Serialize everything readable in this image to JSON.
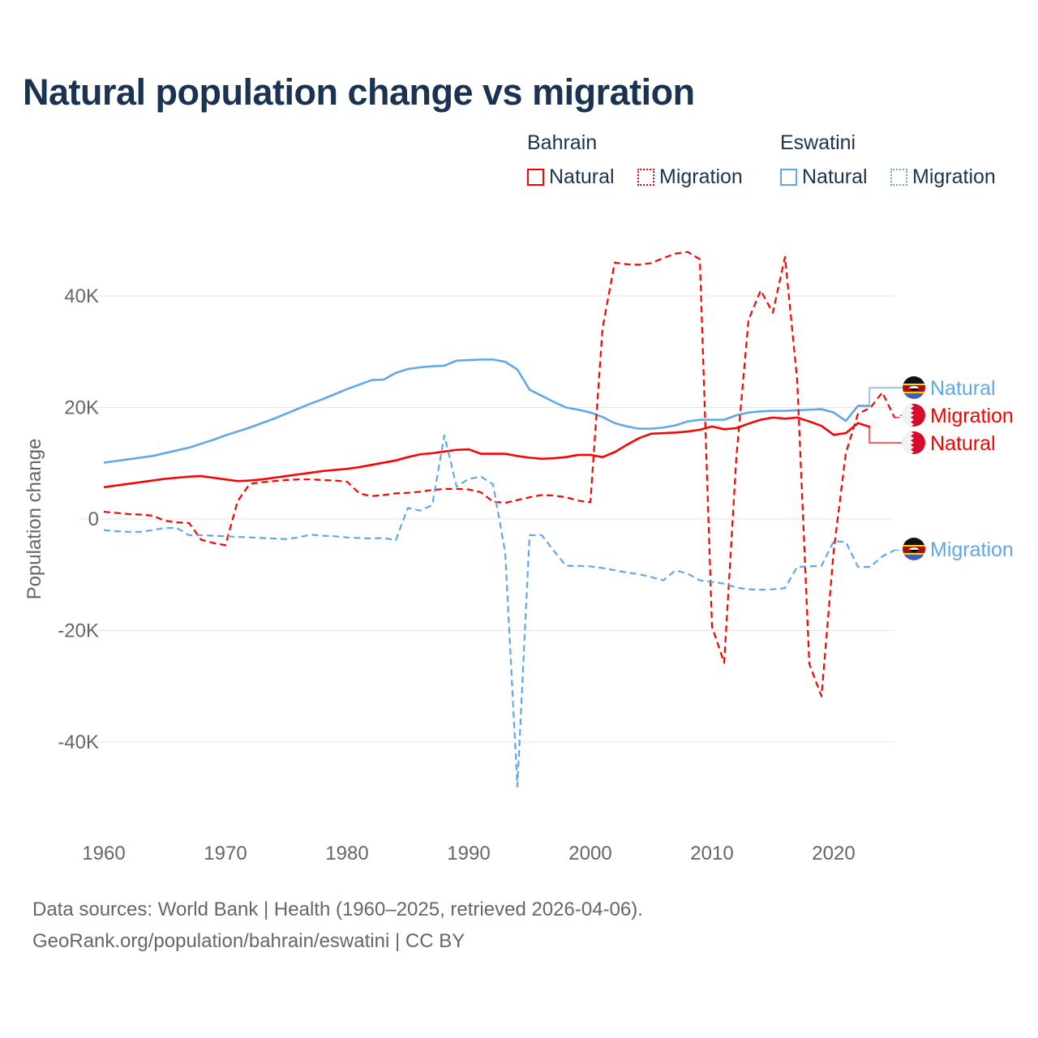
{
  "title": "Natural population change vs migration",
  "legend": {
    "groups": [
      {
        "name": "Bahrain",
        "color": "#ff0000",
        "items": [
          "Natural",
          "Migration"
        ]
      },
      {
        "name": "Eswatini",
        "color": "#5fa8ea",
        "items": [
          "Natural",
          "Migration"
        ]
      }
    ]
  },
  "footer": {
    "sources": "Data sources: World Bank | Health (1960–2025, retrieved 2026-04-06).",
    "url": "GeoRank.org/population/bahrain/eswatini | CC BY"
  },
  "chart_data": {
    "type": "line",
    "title": "Natural population change vs migration",
    "xlabel": "",
    "ylabel": "Population change",
    "xlim": [
      1960,
      2025
    ],
    "ylim": [
      -50000,
      50000
    ],
    "x_ticks": [
      1960,
      1970,
      1980,
      1990,
      2000,
      2010,
      2020
    ],
    "x_tick_labels": [
      "1960",
      "1970",
      "1980",
      "1990",
      "2000",
      "2010",
      "2020"
    ],
    "y_ticks": [
      40000,
      20000,
      0,
      -20000,
      -40000
    ],
    "y_tick_labels": [
      "40K",
      "20K",
      "0",
      "-20K",
      "-40K"
    ],
    "grid": true,
    "legend_position": "top-right",
    "x_start": 1960,
    "series": [
      {
        "name": "Eswatini Natural",
        "country": "Eswatini",
        "kind": "Natural",
        "label": "Natural",
        "color": "#5fa8ea",
        "dashed": false,
        "values": [
          10100,
          10400,
          10700,
          11000,
          11300,
          11800,
          12300,
          12800,
          13500,
          14200,
          15000,
          15700,
          16400,
          17200,
          18000,
          18900,
          19800,
          20700,
          21500,
          22400,
          23300,
          24100,
          24900,
          25000,
          26200,
          26900,
          27200,
          27400,
          27500,
          28400,
          28500,
          28600,
          28600,
          28200,
          26800,
          23200,
          22100,
          21000,
          20000,
          19600,
          19100,
          18300,
          17200,
          16600,
          16200,
          16200,
          16400,
          16800,
          17500,
          17800,
          17800,
          17800,
          18600,
          19100,
          19300,
          19400,
          19400,
          19500,
          19600,
          19700,
          19100,
          17600,
          20300,
          20300
        ]
      },
      {
        "name": "Bahrain Migration",
        "country": "Bahrain",
        "kind": "Migration",
        "label": "Migration",
        "color": "#ff0000",
        "dashed": true,
        "values": [
          1300,
          1100,
          900,
          800,
          600,
          -300,
          -600,
          -700,
          -3700,
          -4300,
          -4700,
          3200,
          6300,
          6600,
          6800,
          7000,
          7100,
          7100,
          7000,
          6900,
          6700,
          4600,
          4100,
          4300,
          4600,
          4700,
          4900,
          5200,
          5400,
          5400,
          5300,
          4800,
          3100,
          2900,
          3400,
          3900,
          4300,
          4200,
          3900,
          3300,
          3000,
          34200,
          46000,
          45700,
          45600,
          45900,
          46800,
          47600,
          47900,
          46600,
          -19300,
          -25800,
          11000,
          35700,
          41000,
          37000,
          47000,
          25000,
          -26000,
          -31800,
          -5800,
          11800,
          18900,
          19900,
          22700,
          18200
        ]
      },
      {
        "name": "Bahrain Natural",
        "country": "Bahrain",
        "kind": "Natural",
        "label": "Natural",
        "color": "#ff0000",
        "dashed": false,
        "values": [
          5700,
          6000,
          6300,
          6600,
          6900,
          7200,
          7400,
          7600,
          7700,
          7400,
          7100,
          6800,
          6900,
          7100,
          7400,
          7700,
          8000,
          8300,
          8600,
          8800,
          9000,
          9300,
          9700,
          10100,
          10500,
          11100,
          11600,
          11800,
          12100,
          12400,
          12500,
          11700,
          11700,
          11700,
          11300,
          11000,
          10800,
          10900,
          11100,
          11500,
          11500,
          11100,
          12000,
          13300,
          14500,
          15300,
          15400,
          15500,
          15700,
          16000,
          16600,
          16100,
          16300,
          17100,
          17800,
          18200,
          18000,
          18200,
          17500,
          16700,
          15100,
          15400,
          17200,
          16500
        ]
      },
      {
        "name": "Eswatini Migration",
        "country": "Eswatini",
        "kind": "Migration",
        "label": "Migration",
        "color": "#5fa8ea",
        "dashed": true,
        "values": [
          -2000,
          -2200,
          -2300,
          -2300,
          -2000,
          -1600,
          -1600,
          -2900,
          -2900,
          -3000,
          -3100,
          -3200,
          -3300,
          -3400,
          -3500,
          -3600,
          -3300,
          -2800,
          -3000,
          -3100,
          -3300,
          -3400,
          -3500,
          -3400,
          -3800,
          2000,
          1500,
          2500,
          15000,
          5800,
          7200,
          7600,
          6200,
          -6000,
          -48000,
          -2900,
          -2900,
          -5700,
          -8400,
          -8400,
          -8500,
          -8800,
          -9200,
          -9600,
          -9900,
          -10400,
          -11000,
          -9200,
          -9800,
          -11000,
          -11300,
          -11600,
          -12300,
          -12600,
          -12700,
          -12600,
          -12400,
          -8600,
          -8500,
          -8400,
          -4000,
          -4100,
          -8600,
          -8600,
          -6700,
          -5600
        ]
      }
    ]
  }
}
